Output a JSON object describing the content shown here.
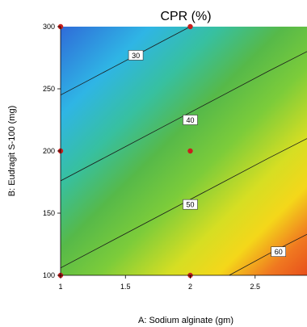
{
  "chart_data": {
    "type": "contour",
    "title": "CPR (%)",
    "xlabel": "A: Sodium alginate (gm)",
    "ylabel": "B: Eudragit S-100 (mg)",
    "xlim": [
      1,
      2.9
    ],
    "ylim": [
      100,
      300
    ],
    "x_ticks": [
      "1",
      "1.5",
      "2",
      "2.5"
    ],
    "x_tick_values": [
      1,
      1.5,
      2,
      2.5
    ],
    "y_ticks": [
      "100",
      "150",
      "200",
      "250",
      "300"
    ],
    "y_tick_values": [
      100,
      150,
      200,
      250,
      300
    ],
    "contours": [
      {
        "level": "30",
        "points": [
          [
            1.0,
            245
          ],
          [
            1.2,
            256
          ],
          [
            1.4,
            267
          ],
          [
            1.6,
            278
          ],
          [
            1.8,
            289
          ],
          [
            2.0,
            300
          ]
        ]
      },
      {
        "level": "40",
        "points": [
          [
            1.0,
            176
          ],
          [
            1.4,
            198
          ],
          [
            1.8,
            220
          ],
          [
            2.2,
            242
          ],
          [
            2.6,
            264
          ],
          [
            2.9,
            280
          ]
        ]
      },
      {
        "level": "50",
        "points": [
          [
            1.0,
            106
          ],
          [
            1.4,
            128
          ],
          [
            1.8,
            150
          ],
          [
            2.2,
            172
          ],
          [
            2.6,
            194
          ],
          [
            2.9,
            210
          ]
        ]
      },
      {
        "level": "60",
        "points": [
          [
            2.3,
            100
          ],
          [
            2.6,
            117
          ],
          [
            2.9,
            133
          ]
        ]
      }
    ],
    "contour_label_positions": [
      {
        "level": "30",
        "x": 1.58,
        "y": 277
      },
      {
        "level": "40",
        "x": 2.0,
        "y": 225
      },
      {
        "level": "50",
        "x": 2.0,
        "y": 157
      },
      {
        "level": "60",
        "x": 2.68,
        "y": 119
      }
    ],
    "design_points": [
      {
        "x": 1,
        "y": 300
      },
      {
        "x": 2,
        "y": 300
      },
      {
        "x": 1,
        "y": 200
      },
      {
        "x": 2,
        "y": 200
      },
      {
        "x": 1,
        "y": 100
      },
      {
        "x": 2,
        "y": 100
      }
    ],
    "colormap": [
      "#2f6bd8",
      "#2fb5e5",
      "#37c0a0",
      "#56b949",
      "#7ccc3a",
      "#d6de23",
      "#f4d71a",
      "#f07820",
      "#e8501c"
    ],
    "point_color": "#c8201e",
    "grid": false
  }
}
